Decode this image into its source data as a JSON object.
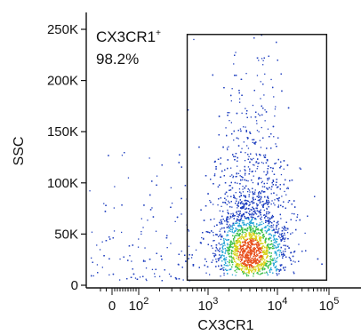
{
  "chart_data": {
    "type": "scatter",
    "subtype": "flow-cytometry-density-dot-plot",
    "xlabel": "CX3CR1",
    "ylabel": "SSC",
    "x_scale": "biexponential (logicle)",
    "xlim": [
      -200,
      100000
    ],
    "ylim": [
      0,
      262144
    ],
    "x_ticks": [
      {
        "value": 0,
        "label": "0",
        "base": "0",
        "exp": ""
      },
      {
        "value": 100,
        "label": "10^2",
        "base": "10",
        "exp": "2"
      },
      {
        "value": 1000,
        "label": "10^3",
        "base": "10",
        "exp": "3"
      },
      {
        "value": 10000,
        "label": "10^4",
        "base": "10",
        "exp": "4"
      },
      {
        "value": 100000,
        "label": "10^5",
        "base": "10",
        "exp": "5"
      }
    ],
    "y_ticks": [
      {
        "value": 0,
        "label": "0"
      },
      {
        "value": 50000,
        "label": "50K"
      },
      {
        "value": 100000,
        "label": "100K"
      },
      {
        "value": 150000,
        "label": "150K"
      },
      {
        "value": 200000,
        "label": "200K"
      },
      {
        "value": 250000,
        "label": "250K"
      }
    ],
    "gate": {
      "name": "CX3CR1",
      "name_sup": "+",
      "percent": "98.2%",
      "x_min": 500,
      "x_max": 90000,
      "y_min": 5000,
      "y_max": 245000
    },
    "density_center": {
      "x": 4000,
      "y": 32000
    },
    "colors": {
      "low": "#1f3fbf",
      "mid_low": "#2aa7d8",
      "mid": "#3cc04a",
      "mid_high": "#d8d21a",
      "high": "#e8521f",
      "axis": "#111111"
    },
    "grid": false,
    "legend": "none"
  }
}
